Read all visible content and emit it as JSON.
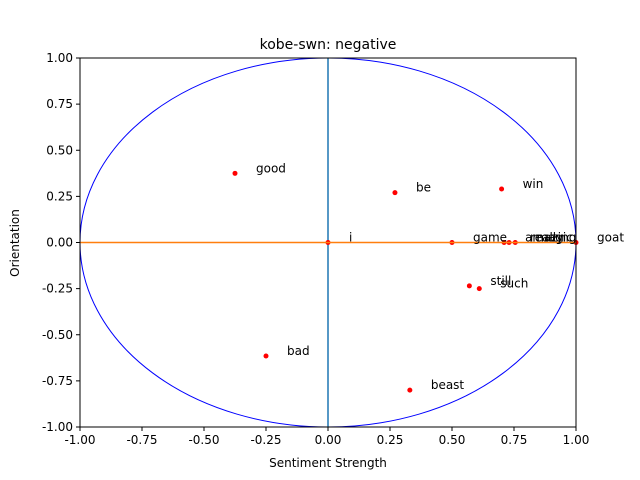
{
  "chart_data": {
    "type": "scatter",
    "title": "kobe-swn: negative",
    "xlabel": "Sentiment Strength",
    "ylabel": "Orientation",
    "xlim": [
      -1.0,
      1.0
    ],
    "ylim": [
      -1.0,
      1.0
    ],
    "xticks": [
      "-1.00",
      "-0.75",
      "-0.50",
      "-0.25",
      "0.00",
      "0.25",
      "0.50",
      "0.75",
      "1.00"
    ],
    "yticks": [
      "-1.00",
      "-0.75",
      "-0.50",
      "-0.25",
      "0.00",
      "0.25",
      "0.50",
      "0.75",
      "1.00"
    ],
    "grid": false,
    "reference_circle": {
      "radius": 1.0,
      "color": "#0000ff"
    },
    "zero_lines": {
      "horizontal_color": "#ff7f0e",
      "vertical_color": "#1f77b4"
    },
    "point_color": "#ff0000",
    "points": [
      {
        "label": "good",
        "x": -0.375,
        "y": 0.375
      },
      {
        "label": "be",
        "x": 0.27,
        "y": 0.27
      },
      {
        "label": "win",
        "x": 0.7,
        "y": 0.29
      },
      {
        "label": "i",
        "x": 0.0,
        "y": 0.0
      },
      {
        "label": "game",
        "x": 0.5,
        "y": 0.0
      },
      {
        "label": "amazing",
        "x": 0.71,
        "y": 0.0
      },
      {
        "label": "really",
        "x": 0.73,
        "y": 0.0
      },
      {
        "label": "magic",
        "x": 0.755,
        "y": 0.0
      },
      {
        "label": "goat",
        "x": 1.0,
        "y": 0.0
      },
      {
        "label": "still",
        "x": 0.57,
        "y": -0.235
      },
      {
        "label": "such",
        "x": 0.61,
        "y": -0.25
      },
      {
        "label": "bad",
        "x": -0.25,
        "y": -0.615
      },
      {
        "label": "beast",
        "x": 0.33,
        "y": -0.8
      }
    ]
  }
}
